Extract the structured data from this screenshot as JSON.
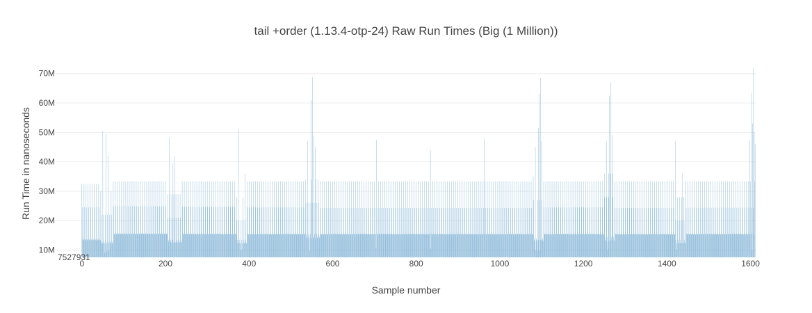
{
  "chart_data": {
    "type": "bar",
    "title": "tail +order (1.13.4-otp-24) Raw Run Times (Big (1 Million))",
    "xlabel": "Sample number",
    "ylabel": "Run Time in nanoseconds",
    "xlim": [
      -3,
      1614
    ],
    "ylim": [
      7527931,
      72300000
    ],
    "base_value": 7527931,
    "base_label": "7527931",
    "x_ticks": [
      {
        "value": 0,
        "label": "0"
      },
      {
        "value": 200,
        "label": "200"
      },
      {
        "value": 400,
        "label": "400"
      },
      {
        "value": 600,
        "label": "600"
      },
      {
        "value": 800,
        "label": "800"
      },
      {
        "value": 1000,
        "label": "1000"
      },
      {
        "value": 1200,
        "label": "1200"
      },
      {
        "value": 1400,
        "label": "1400"
      },
      {
        "value": 1600,
        "label": "1600"
      }
    ],
    "y_ticks": [
      {
        "value": 10000000,
        "label": "10M"
      },
      {
        "value": 20000000,
        "label": "20M"
      },
      {
        "value": 30000000,
        "label": "30M"
      },
      {
        "value": 40000000,
        "label": "40M"
      },
      {
        "value": 50000000,
        "label": "50M"
      },
      {
        "value": 60000000,
        "label": "60M"
      },
      {
        "value": 70000000,
        "label": "70M"
      }
    ],
    "grid": true,
    "bar_color": "#7aaed3",
    "sample_count": 1612,
    "cycle_pattern": [
      33400000,
      24700000,
      15700000,
      15600000,
      15400000
    ],
    "segments": [
      {
        "start": 0,
        "end": 45,
        "pattern": [
          32500000,
          24500000,
          13800000,
          13500000,
          13300000
        ]
      },
      {
        "start": 45,
        "end": 75,
        "pattern": [
          30000000,
          22000000,
          13000000,
          12500000,
          12300000
        ]
      },
      {
        "start": 75,
        "end": 205,
        "pattern": [
          33400000,
          24900000,
          15700000,
          15500000,
          15400000
        ]
      },
      {
        "start": 205,
        "end": 240,
        "pattern": [
          29000000,
          21000000,
          13500000,
          12800000,
          12500000
        ]
      },
      {
        "start": 240,
        "end": 370,
        "pattern": [
          33400000,
          24700000,
          15600000,
          15500000,
          15300000
        ]
      },
      {
        "start": 370,
        "end": 395,
        "pattern": [
          28000000,
          20000000,
          13500000,
          12500000,
          12300000
        ]
      },
      {
        "start": 395,
        "end": 535,
        "pattern": [
          33400000,
          24500000,
          15600000,
          15400000,
          15300000
        ]
      },
      {
        "start": 535,
        "end": 570,
        "pattern": [
          34000000,
          26000000,
          15500000,
          14500000,
          14000000
        ]
      },
      {
        "start": 570,
        "end": 1080,
        "pattern": [
          33400000,
          24300000,
          15600000,
          15400000,
          15300000
        ]
      },
      {
        "start": 1080,
        "end": 1105,
        "pattern": [
          35000000,
          27000000,
          14000000,
          13500000,
          13000000
        ]
      },
      {
        "start": 1105,
        "end": 1250,
        "pattern": [
          33400000,
          24500000,
          15600000,
          15400000,
          15300000
        ]
      },
      {
        "start": 1250,
        "end": 1275,
        "pattern": [
          36000000,
          28000000,
          14500000,
          13500000,
          13000000
        ]
      },
      {
        "start": 1275,
        "end": 1420,
        "pattern": [
          33400000,
          24300000,
          15500000,
          15400000,
          15300000
        ]
      },
      {
        "start": 1420,
        "end": 1445,
        "pattern": [
          28000000,
          20000000,
          13500000,
          12500000,
          12300000
        ]
      },
      {
        "start": 1445,
        "end": 1612,
        "pattern": [
          33400000,
          24400000,
          15600000,
          15400000,
          15300000
        ]
      }
    ],
    "dips": [
      {
        "x": 55,
        "value": 9200000
      },
      {
        "x": 60,
        "value": 9500000
      },
      {
        "x": 65,
        "value": 9800000
      },
      {
        "x": 380,
        "value": 10000000
      },
      {
        "x": 383,
        "value": 10200000
      },
      {
        "x": 545,
        "value": 9800000
      },
      {
        "x": 548,
        "value": 10200000
      },
      {
        "x": 704,
        "value": 10500000
      },
      {
        "x": 834,
        "value": 10500000
      },
      {
        "x": 1086,
        "value": 10000000
      },
      {
        "x": 1090,
        "value": 9700000
      },
      {
        "x": 1095,
        "value": 9900000
      },
      {
        "x": 1258,
        "value": 10100000
      },
      {
        "x": 1424,
        "value": 10200000
      },
      {
        "x": 1598,
        "value": 9800000
      },
      {
        "x": 1604,
        "value": 10000000
      }
    ],
    "spikes": [
      {
        "x": 50,
        "value": 50500000
      },
      {
        "x": 58,
        "value": 49300000
      },
      {
        "x": 63,
        "value": 42000000
      },
      {
        "x": 209,
        "value": 48300000
      },
      {
        "x": 222,
        "value": 42000000
      },
      {
        "x": 218,
        "value": 39500000
      },
      {
        "x": 375,
        "value": 51000000
      },
      {
        "x": 390,
        "value": 36000000
      },
      {
        "x": 540,
        "value": 47000000
      },
      {
        "x": 548,
        "value": 61000000
      },
      {
        "x": 552,
        "value": 68800000
      },
      {
        "x": 555,
        "value": 49000000
      },
      {
        "x": 558,
        "value": 45000000
      },
      {
        "x": 705,
        "value": 47500000
      },
      {
        "x": 835,
        "value": 43800000
      },
      {
        "x": 963,
        "value": 48000000
      },
      {
        "x": 1085,
        "value": 45000000
      },
      {
        "x": 1092,
        "value": 51500000
      },
      {
        "x": 1094,
        "value": 63000000
      },
      {
        "x": 1097,
        "value": 68500000
      },
      {
        "x": 1100,
        "value": 47000000
      },
      {
        "x": 1255,
        "value": 47000000
      },
      {
        "x": 1262,
        "value": 62500000
      },
      {
        "x": 1266,
        "value": 67000000
      },
      {
        "x": 1269,
        "value": 49000000
      },
      {
        "x": 1420,
        "value": 47000000
      },
      {
        "x": 1437,
        "value": 36000000
      },
      {
        "x": 1598,
        "value": 47300000
      },
      {
        "x": 1603,
        "value": 63500000
      },
      {
        "x": 1605,
        "value": 53000000
      },
      {
        "x": 1607,
        "value": 72000000
      },
      {
        "x": 1609,
        "value": 50000000
      },
      {
        "x": 1611,
        "value": 46000000
      }
    ]
  }
}
